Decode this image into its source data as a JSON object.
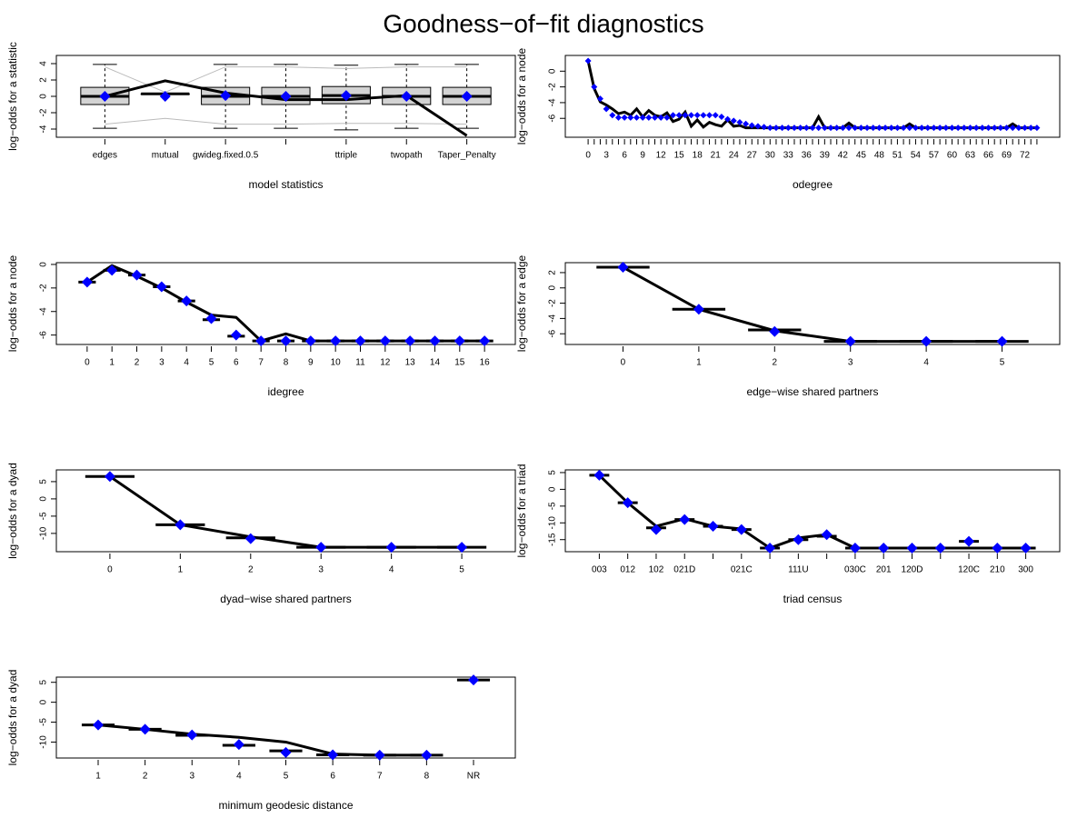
{
  "title": "Goodness−of−fit diagnostics",
  "chart_data": [
    {
      "type": "boxplot",
      "xlabel": "model statistics",
      "ylabel": "log−odds for a statistic",
      "categories": [
        "edges",
        "mutual",
        "gwideg.fixed.0.5",
        null,
        "ttriple",
        "twopath",
        "Taper_Penalty"
      ],
      "ylim": [
        -5,
        5
      ],
      "yticks": [
        -4,
        -2,
        0,
        2,
        4
      ],
      "boxes": {
        "color": "#d3d3d3",
        "q1": [
          -1,
          0.3,
          -1,
          -1,
          -0.9,
          -1,
          -1
        ],
        "median": [
          0,
          0.3,
          0,
          0,
          0.1,
          0,
          0
        ],
        "q3": [
          1.1,
          0.3,
          1.1,
          1.1,
          1.2,
          1.1,
          1.1
        ],
        "low": [
          -3.9,
          0.3,
          -3.9,
          -3.9,
          -4.1,
          -3.9,
          -3.9
        ],
        "high": [
          3.9,
          0.3,
          3.9,
          3.9,
          3.8,
          3.9,
          3.9
        ]
      },
      "series": [
        {
          "mark": "gray-line",
          "color": "#bbbbbb",
          "values": [
            3.6,
            0.5,
            3.6,
            3.6,
            3.4,
            3.6,
            3.6
          ]
        },
        {
          "mark": "gray-line",
          "color": "#bbbbbb",
          "values": [
            -3.4,
            -2.7,
            -3.4,
            -3.4,
            -3.3,
            -3.3,
            -3.4
          ]
        },
        {
          "mark": "line",
          "color": "#000000",
          "values": [
            0,
            1.9,
            0.4,
            -0.4,
            -0.4,
            0.1,
            -4.8
          ]
        },
        {
          "mark": "diamond",
          "color": "#0000ff",
          "values": [
            0,
            0,
            0.1,
            0,
            0.1,
            0,
            0
          ]
        }
      ]
    },
    {
      "type": "boxplot",
      "xlabel": "odegree",
      "ylabel": "log−odds for a node",
      "categories": [
        "0",
        null,
        null,
        "3",
        null,
        null,
        "6",
        null,
        null,
        "9",
        null,
        null,
        "12",
        null,
        null,
        "15",
        null,
        null,
        "18",
        null,
        null,
        "21",
        null,
        null,
        "24",
        null,
        null,
        "27",
        null,
        null,
        "30",
        null,
        null,
        "33",
        null,
        null,
        "36",
        null,
        null,
        "39",
        null,
        null,
        "42",
        null,
        null,
        "45",
        null,
        null,
        "48",
        null,
        null,
        "51",
        null,
        null,
        "54",
        null,
        null,
        "57",
        null,
        null,
        "60",
        null,
        null,
        "63",
        null,
        null,
        "66",
        null,
        null,
        "69",
        null,
        null,
        "72",
        null,
        null
      ],
      "ylim": [
        -8.4,
        2
      ],
      "yticks": [
        -6,
        -4,
        -2,
        0
      ],
      "series": [
        {
          "mark": "line",
          "color": "#000000",
          "values": [
            1.3,
            -2.2,
            -3.9,
            -4.3,
            -4.8,
            -5.4,
            -5.2,
            -5.6,
            -4.8,
            -5.8,
            -5,
            -5.6,
            -5.8,
            -5.3,
            -6.4,
            -6.1,
            -5.2,
            -7,
            -6.2,
            -7.1,
            -6.5,
            -6.8,
            -7,
            -6.2,
            -7,
            -6.9,
            -7.2,
            -7.2,
            -7.2,
            -7.2,
            -7.2,
            -7.2,
            -7.2,
            -7.2,
            -7.2,
            -7.2,
            -7.2,
            -7.2,
            -5.8,
            -7.2,
            -7.2,
            -7.2,
            -7.2,
            -6.6,
            -7.2,
            -7.2,
            -7.2,
            -7.2,
            -7.2,
            -7.2,
            -7.2,
            -7.2,
            -7.2,
            -6.7,
            -7.2,
            -7.2,
            -7.2,
            -7.2,
            -7.2,
            -7.2,
            -7.2,
            -7.2,
            -7.2,
            -7.2,
            -7.2,
            -7.2,
            -7.2,
            -7.2,
            -7.2,
            -7.2,
            -6.7,
            -7.2,
            -7.2,
            -7.2,
            -7.2
          ]
        },
        {
          "mark": "diamond",
          "color": "#0000ff",
          "values": [
            1.3,
            -2,
            -3.5,
            -4.8,
            -5.6,
            -5.9,
            -5.9,
            -5.9,
            -5.9,
            -5.9,
            -5.9,
            -5.9,
            -5.9,
            -5.9,
            -5.6,
            -5.6,
            -5.6,
            -5.6,
            -5.6,
            -5.6,
            -5.6,
            -5.6,
            -5.8,
            -6.1,
            -6.3,
            -6.5,
            -6.7,
            -6.9,
            -7,
            -7.1,
            -7.2,
            -7.2,
            -7.2,
            -7.2,
            -7.2,
            -7.2,
            -7.2,
            -7.2,
            -7.2,
            -7.2,
            -7.2,
            -7.2,
            -7.2,
            -7.2,
            -7.2,
            -7.2,
            -7.2,
            -7.2,
            -7.2,
            -7.2,
            -7.2,
            -7.2,
            -7.2,
            -7.2,
            -7.2,
            -7.2,
            -7.2,
            -7.2,
            -7.2,
            -7.2,
            -7.2,
            -7.2,
            -7.2,
            -7.2,
            -7.2,
            -7.2,
            -7.2,
            -7.2,
            -7.2,
            -7.2,
            -7.2,
            -7.2,
            -7.2,
            -7.2,
            -7.2
          ]
        }
      ]
    },
    {
      "type": "boxplot",
      "xlabel": "idegree",
      "ylabel": "log−odds for a node",
      "categories": [
        "0",
        "1",
        "2",
        "3",
        "4",
        "5",
        "6",
        "7",
        "8",
        "9",
        "10",
        "11",
        "12",
        "13",
        "14",
        "15",
        "16"
      ],
      "ylim": [
        -6.8,
        0.15
      ],
      "yticks": [
        -6,
        -4,
        -2,
        0
      ],
      "series": [
        {
          "mark": "dash",
          "color": "#000000",
          "values": [
            -1.5,
            -0.5,
            -0.9,
            -1.9,
            -3.1,
            -4.7,
            -6.1,
            -6.5,
            -6.5,
            -6.5,
            -6.5,
            -6.5,
            -6.5,
            -6.5,
            -6.5,
            -6.5,
            -6.5
          ]
        },
        {
          "mark": "line",
          "color": "#000000",
          "values": [
            -1.5,
            -0.1,
            -1,
            -2,
            -3.2,
            -4.3,
            -4.5,
            -6.5,
            -5.9,
            -6.5,
            -6.5,
            -6.5,
            -6.5,
            -6.5,
            -6.5,
            -6.5,
            -6.5
          ]
        },
        {
          "mark": "diamond",
          "color": "#0000ff",
          "values": [
            -1.5,
            -0.5,
            -0.9,
            -1.9,
            -3.1,
            -4.6,
            -6,
            -6.5,
            -6.5,
            -6.5,
            -6.5,
            -6.5,
            -6.5,
            -6.5,
            -6.5,
            -6.5,
            -6.5
          ]
        }
      ]
    },
    {
      "type": "boxplot",
      "xlabel": "edge−wise shared partners",
      "ylabel": "log−odds for a edge",
      "categories": [
        "0",
        "1",
        "2",
        "3",
        "4",
        "5"
      ],
      "ylim": [
        -7.4,
        3.3
      ],
      "yticks": [
        -6,
        -4,
        -2,
        0,
        2
      ],
      "series": [
        {
          "mark": "dash",
          "color": "#000000",
          "values": [
            2.7,
            -2.8,
            -5.5,
            -7,
            -7,
            -7
          ]
        },
        {
          "mark": "line",
          "color": "#000000",
          "values": [
            2.7,
            -2.8,
            -5.6,
            -7,
            -7,
            -7
          ]
        },
        {
          "mark": "diamond",
          "color": "#0000ff",
          "values": [
            2.7,
            -2.8,
            -5.7,
            -7,
            -7,
            -7
          ]
        }
      ]
    },
    {
      "type": "boxplot",
      "xlabel": "dyad−wise shared partners",
      "ylabel": "log−odds for a dyad",
      "categories": [
        "0",
        "1",
        "2",
        "3",
        "4",
        "5"
      ],
      "ylim": [
        -15.3,
        8.4
      ],
      "yticks": [
        -10,
        -5,
        0,
        5
      ],
      "series": [
        {
          "mark": "dash",
          "color": "#000000",
          "values": [
            6.5,
            -7.5,
            -11.3,
            -14,
            -14,
            -14
          ]
        },
        {
          "mark": "line",
          "color": "#000000",
          "values": [
            6.5,
            -7.5,
            -11,
            -14,
            -14,
            -14
          ]
        },
        {
          "mark": "diamond",
          "color": "#0000ff",
          "values": [
            6.5,
            -7.5,
            -11.5,
            -14,
            -14,
            -14
          ]
        }
      ]
    },
    {
      "type": "boxplot",
      "xlabel": "triad census",
      "ylabel": "log−odds for a triad",
      "categories": [
        "003",
        "012",
        "102",
        "021D",
        null,
        "021C",
        null,
        "111U",
        null,
        "030C",
        "201",
        "120D",
        null,
        "120C",
        "210",
        "300"
      ],
      "ylim": [
        -18.6,
        5.8
      ],
      "yticks": [
        -15,
        -10,
        -5,
        0,
        5
      ],
      "series": [
        {
          "mark": "dash",
          "color": "#000000",
          "values": [
            4.2,
            -4,
            -11.5,
            -9,
            -11,
            -12,
            -17.5,
            -15,
            -14,
            -17.5,
            -17.5,
            -17.5,
            -17.5,
            -15.5,
            -17.5,
            -17.5
          ]
        },
        {
          "mark": "line",
          "color": "#000000",
          "values": [
            4.2,
            -4,
            -11,
            -8.8,
            -11,
            -11.8,
            -17.5,
            -14.5,
            -13.5,
            -17.5,
            -17.5,
            -17.5,
            -17.5,
            -17.5,
            -17.5,
            -17.5
          ]
        },
        {
          "mark": "diamond",
          "color": "#0000ff",
          "values": [
            4.2,
            -4,
            -12,
            -9,
            -11,
            -12,
            -17.5,
            -15,
            -13.5,
            -17.5,
            -17.5,
            -17.5,
            -17.5,
            -15.5,
            -17.5,
            -17.5
          ]
        }
      ]
    },
    {
      "type": "boxplot",
      "xlabel": "minimum geodesic distance",
      "ylabel": "log−odds for a dyad",
      "categories": [
        "1",
        "2",
        "3",
        "4",
        "5",
        "6",
        "7",
        "8",
        "NR"
      ],
      "ylim": [
        -14,
        6.3
      ],
      "yticks": [
        -10,
        -5,
        0,
        5
      ],
      "series": [
        {
          "mark": "dash",
          "color": "#000000",
          "values": [
            -5.7,
            -6.8,
            -8.3,
            -10.8,
            -12.2,
            -13.2,
            -13.3,
            -13.3,
            5.6
          ]
        },
        {
          "mark": "line",
          "color": "#000000",
          "values": [
            -5.7,
            -6.8,
            -8,
            -8.8,
            -10,
            -13,
            -13.3,
            -13.3,
            null
          ]
        },
        {
          "mark": "diamond",
          "color": "#0000ff",
          "values": [
            -5.7,
            -6.8,
            -8.2,
            -10.6,
            -12.6,
            -13.2,
            -13.3,
            -13.3,
            5.6
          ]
        }
      ]
    }
  ]
}
